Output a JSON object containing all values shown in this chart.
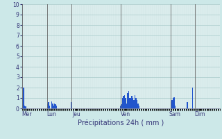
{
  "title": "Précipitations 24h ( mm )",
  "ylim": [
    0,
    10
  ],
  "yticks": [
    0,
    1,
    2,
    3,
    4,
    5,
    6,
    7,
    8,
    9,
    10
  ],
  "background_color": "#cce8e8",
  "plot_bg_color": "#dff0f0",
  "bar_color": "#2255cc",
  "grid_color_major": "#aacccc",
  "grid_color_minor": "#c8dede",
  "day_line_color": "#666666",
  "day_labels": [
    "Mer",
    "Lun",
    "Jeu",
    "Ven",
    "Sam",
    "Dim"
  ],
  "day_sep_indices": [
    0,
    24,
    48,
    96,
    144,
    168,
    192
  ],
  "day_label_offsets": [
    4,
    28,
    52,
    100,
    148,
    172
  ],
  "n_bars": 192,
  "bar_values": [
    1.0,
    2.0,
    0.3,
    0.2,
    0.0,
    0.0,
    0.0,
    0.0,
    0.0,
    0.0,
    0.0,
    0.0,
    0.0,
    0.0,
    0.0,
    0.0,
    0.0,
    0.0,
    0.0,
    0.0,
    0.0,
    0.0,
    0.0,
    0.0,
    0.5,
    0.6,
    0.3,
    0.0,
    0.7,
    0.5,
    0.3,
    0.5,
    0.4,
    0.3,
    0.0,
    0.0,
    0.0,
    0.0,
    0.0,
    0.0,
    0.0,
    0.0,
    0.0,
    0.0,
    0.0,
    0.0,
    0.0,
    0.6,
    0.0,
    0.0,
    0.0,
    0.0,
    0.0,
    0.0,
    0.0,
    0.0,
    0.0,
    0.0,
    0.0,
    0.0,
    0.0,
    0.0,
    0.0,
    0.0,
    0.0,
    0.0,
    0.0,
    0.0,
    0.0,
    0.0,
    0.0,
    0.0,
    0.0,
    0.0,
    0.0,
    0.0,
    0.0,
    0.0,
    0.0,
    0.0,
    0.0,
    0.0,
    0.0,
    0.0,
    0.0,
    0.0,
    0.0,
    0.0,
    0.0,
    0.0,
    0.0,
    0.0,
    0.0,
    0.0,
    0.0,
    0.3,
    0.4,
    1.0,
    1.2,
    1.3,
    1.0,
    0.5,
    1.5,
    1.7,
    1.0,
    1.0,
    1.2,
    1.0,
    0.8,
    1.3,
    1.0,
    0.8,
    0.5,
    0.3,
    0.0,
    0.0,
    0.0,
    0.0,
    0.0,
    0.0,
    0.0,
    0.0,
    0.0,
    0.0,
    0.0,
    0.0,
    0.0,
    0.0,
    0.0,
    0.0,
    0.0,
    0.0,
    0.0,
    0.0,
    0.0,
    0.0,
    0.0,
    0.0,
    0.0,
    0.0,
    0.0,
    0.0,
    0.0,
    0.0,
    0.7,
    0.8,
    1.0,
    1.1,
    0.3,
    0.0,
    0.0,
    0.0,
    0.0,
    0.0,
    0.0,
    0.0,
    0.0,
    0.0,
    0.0,
    0.0,
    0.6,
    0.0,
    0.0,
    0.0,
    0.0,
    2.0,
    0.0,
    0.0,
    0.0,
    0.0,
    0.0,
    0.0,
    0.0,
    0.0,
    0.0,
    0.0,
    0.0,
    0.0,
    0.0,
    0.0,
    0.0,
    0.0,
    0.0,
    0.0,
    0.0,
    0.0,
    0.0,
    0.0,
    0.0,
    0.0,
    0.0,
    0.0
  ]
}
